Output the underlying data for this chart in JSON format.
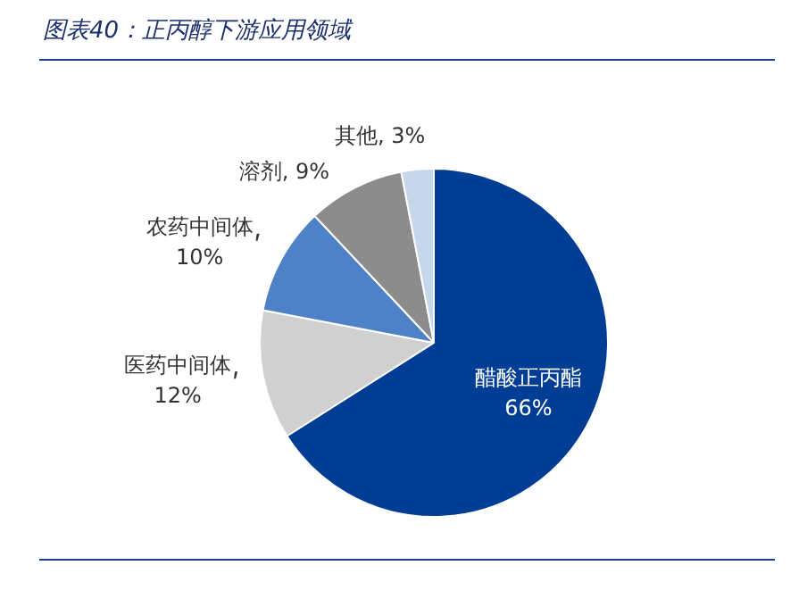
{
  "chart_data": {
    "type": "pie",
    "title": "图表40：正丙醇下游应用领域",
    "categories": [
      "醋酸正丙酯",
      "医药中间体",
      "农药中间体",
      "溶剂",
      "其他"
    ],
    "values": [
      66,
      12,
      10,
      9,
      3
    ],
    "value_labels": [
      "66%",
      "12%",
      "10%",
      "9%",
      "3%"
    ],
    "colors": [
      "#003d94",
      "#d0d0d0",
      "#4f81c8",
      "#8c8c8c",
      "#c6d6eb"
    ],
    "data_labels": true,
    "legend": false
  }
}
